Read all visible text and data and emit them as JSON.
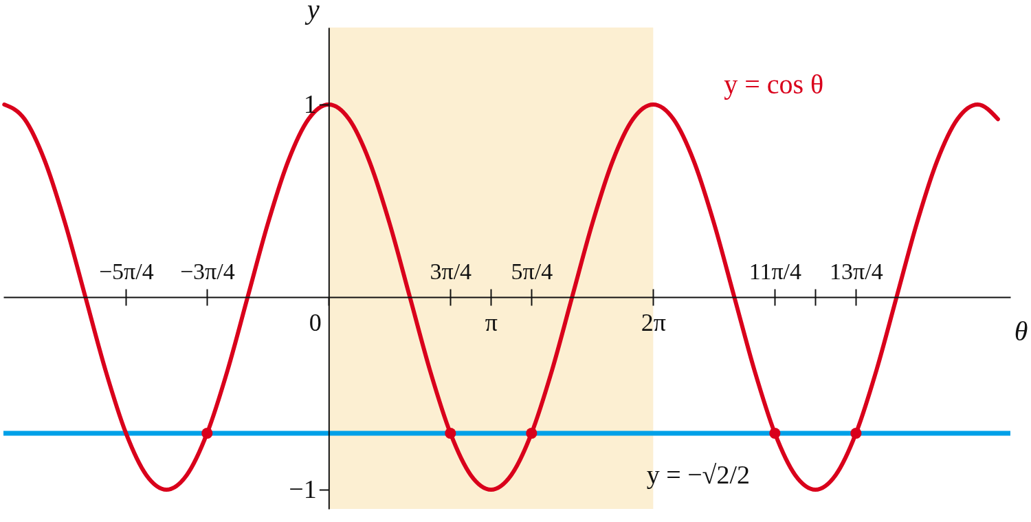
{
  "chart_data": {
    "type": "line",
    "xlabel": "θ",
    "ylabel": "y",
    "xlim": [
      -6.3,
      13.2
    ],
    "ylim": [
      -1.1,
      1.4
    ],
    "x2lim": [
      -6.3,
      13.2
    ],
    "xticks": [
      {
        "value": -3.927,
        "label": null
      },
      {
        "value": -2.356,
        "label": null
      },
      0,
      {
        "value": 2.356,
        "label": null
      },
      {
        "value": 3.142,
        "label": "π"
      },
      {
        "value": 3.927,
        "label": null
      },
      {
        "value": 6.283,
        "label": "2π"
      },
      {
        "value": 8.639,
        "label": null
      },
      {
        "value": 9.425,
        "label": null
      },
      {
        "value": 10.21,
        "label": null
      }
    ],
    "x2ticks": [
      {
        "value": -3.927,
        "label": "−5π/4"
      },
      {
        "value": -2.356,
        "label": "−3π/4"
      },
      {
        "value": 2.356,
        "label": "3π/4"
      },
      {
        "value": 3.142,
        "label": null
      },
      {
        "value": 3.927,
        "label": "5π/4"
      },
      {
        "value": 6.283,
        "label": null
      },
      {
        "value": 8.639,
        "label": "11π/4"
      },
      {
        "value": 9.425,
        "label": null
      },
      {
        "value": 10.21,
        "label": "13π/4"
      }
    ],
    "yticks": [
      -1,
      1
    ],
    "bands": [
      {
        "axis": "x",
        "from": 0,
        "to": 6.283,
        "color": "#fcefd2"
      }
    ],
    "ref_lines": [
      {
        "axis": "y",
        "value": -0.707,
        "label": "y = −√2/2",
        "color": "#00a0e8"
      }
    ],
    "series": [
      {
        "name": "y = cos θ",
        "color": "#d9001b",
        "x": [
          -6.283,
          -5.89,
          -5.498,
          -5.105,
          -4.712,
          -4.32,
          -3.927,
          -3.534,
          -3.142,
          -2.749,
          -2.356,
          -1.963,
          -1.571,
          -1.178,
          -0.785,
          -0.393,
          0,
          0.393,
          0.785,
          1.178,
          1.571,
          1.963,
          2.356,
          2.749,
          3.142,
          3.534,
          3.927,
          4.32,
          4.712,
          5.105,
          5.498,
          5.89,
          6.283,
          6.676,
          7.069,
          7.461,
          7.854,
          8.247,
          8.639,
          9.032,
          9.425,
          9.817,
          10.21,
          10.603,
          10.996,
          11.388,
          11.781,
          12.174,
          12.566,
          12.959
        ],
        "values": [
          1,
          0.924,
          0.707,
          0.383,
          0,
          -0.383,
          -0.707,
          -0.924,
          -1,
          -0.924,
          -0.707,
          -0.383,
          0,
          0.383,
          0.707,
          0.924,
          1,
          0.924,
          0.707,
          0.383,
          0,
          -0.383,
          -0.707,
          -0.924,
          -1,
          -0.924,
          -0.707,
          -0.383,
          0,
          0.383,
          0.707,
          0.924,
          1,
          0.924,
          0.707,
          0.383,
          0,
          -0.383,
          -0.707,
          -0.924,
          -1,
          -0.924,
          -0.707,
          -0.383,
          0,
          0.383,
          0.707,
          0.924,
          1,
          0.924
        ]
      },
      {
        "type": "scatter",
        "color": "#d9001b",
        "marker": "circle",
        "x": [
          -2.356,
          2.356,
          3.927,
          8.639,
          10.21
        ],
        "values": [
          -0.707,
          -0.707,
          -0.707,
          -0.707,
          -0.707
        ]
      }
    ]
  }
}
